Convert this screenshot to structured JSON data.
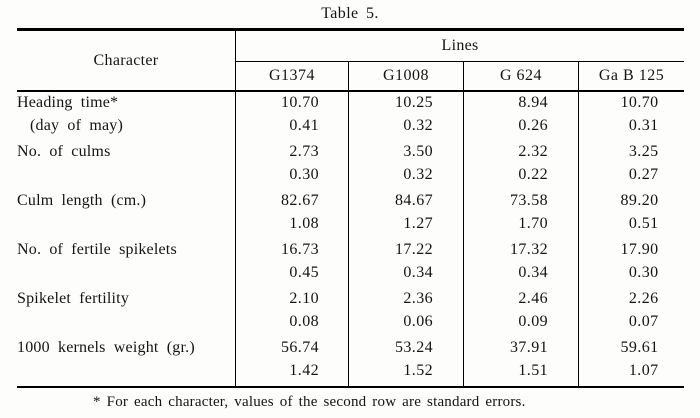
{
  "page": {
    "title": "Table 5.",
    "footnote": "* For each character, values of the second row are standard errors."
  },
  "table": {
    "character_header": "Character",
    "lines_header": "Lines",
    "line_names": [
      "G1374",
      "G1008",
      "G 624",
      "Ga B 125"
    ],
    "rows": [
      {
        "label": "Heading time*",
        "sublabel": "(day of may)",
        "values": [
          [
            "10.70",
            "0.41"
          ],
          [
            "10.25",
            "0.32"
          ],
          [
            "8.94",
            "0.26"
          ],
          [
            "10.70",
            "0.31"
          ]
        ]
      },
      {
        "label": "No. of culms",
        "sublabel": "",
        "values": [
          [
            "2.73",
            "0.30"
          ],
          [
            "3.50",
            "0.32"
          ],
          [
            "2.32",
            "0.22"
          ],
          [
            "3.25",
            "0.27"
          ]
        ]
      },
      {
        "label": "Culm length (cm.)",
        "sublabel": "",
        "values": [
          [
            "82.67",
            "1.08"
          ],
          [
            "84.67",
            "1.27"
          ],
          [
            "73.58",
            "1.70"
          ],
          [
            "89.20",
            "0.51"
          ]
        ]
      },
      {
        "label": "No. of fertile spikelets",
        "sublabel": "",
        "values": [
          [
            "16.73",
            "0.45"
          ],
          [
            "17.22",
            "0.34"
          ],
          [
            "17.32",
            "0.34"
          ],
          [
            "17.90",
            "0.30"
          ]
        ]
      },
      {
        "label": "Spikelet fertility",
        "sublabel": "",
        "values": [
          [
            "2.10",
            "0.08"
          ],
          [
            "2.36",
            "0.06"
          ],
          [
            "2.46",
            "0.09"
          ],
          [
            "2.26",
            "0.07"
          ]
        ]
      },
      {
        "label": "1000 kernels weight (gr.)",
        "sublabel": "",
        "values": [
          [
            "56.74",
            "1.42"
          ],
          [
            "53.24",
            "1.52"
          ],
          [
            "37.91",
            "1.51"
          ],
          [
            "59.61",
            "1.07"
          ]
        ]
      }
    ]
  },
  "colors": {
    "ink": "#141414",
    "rule": "#000000",
    "paper": "#fdfdfb"
  }
}
